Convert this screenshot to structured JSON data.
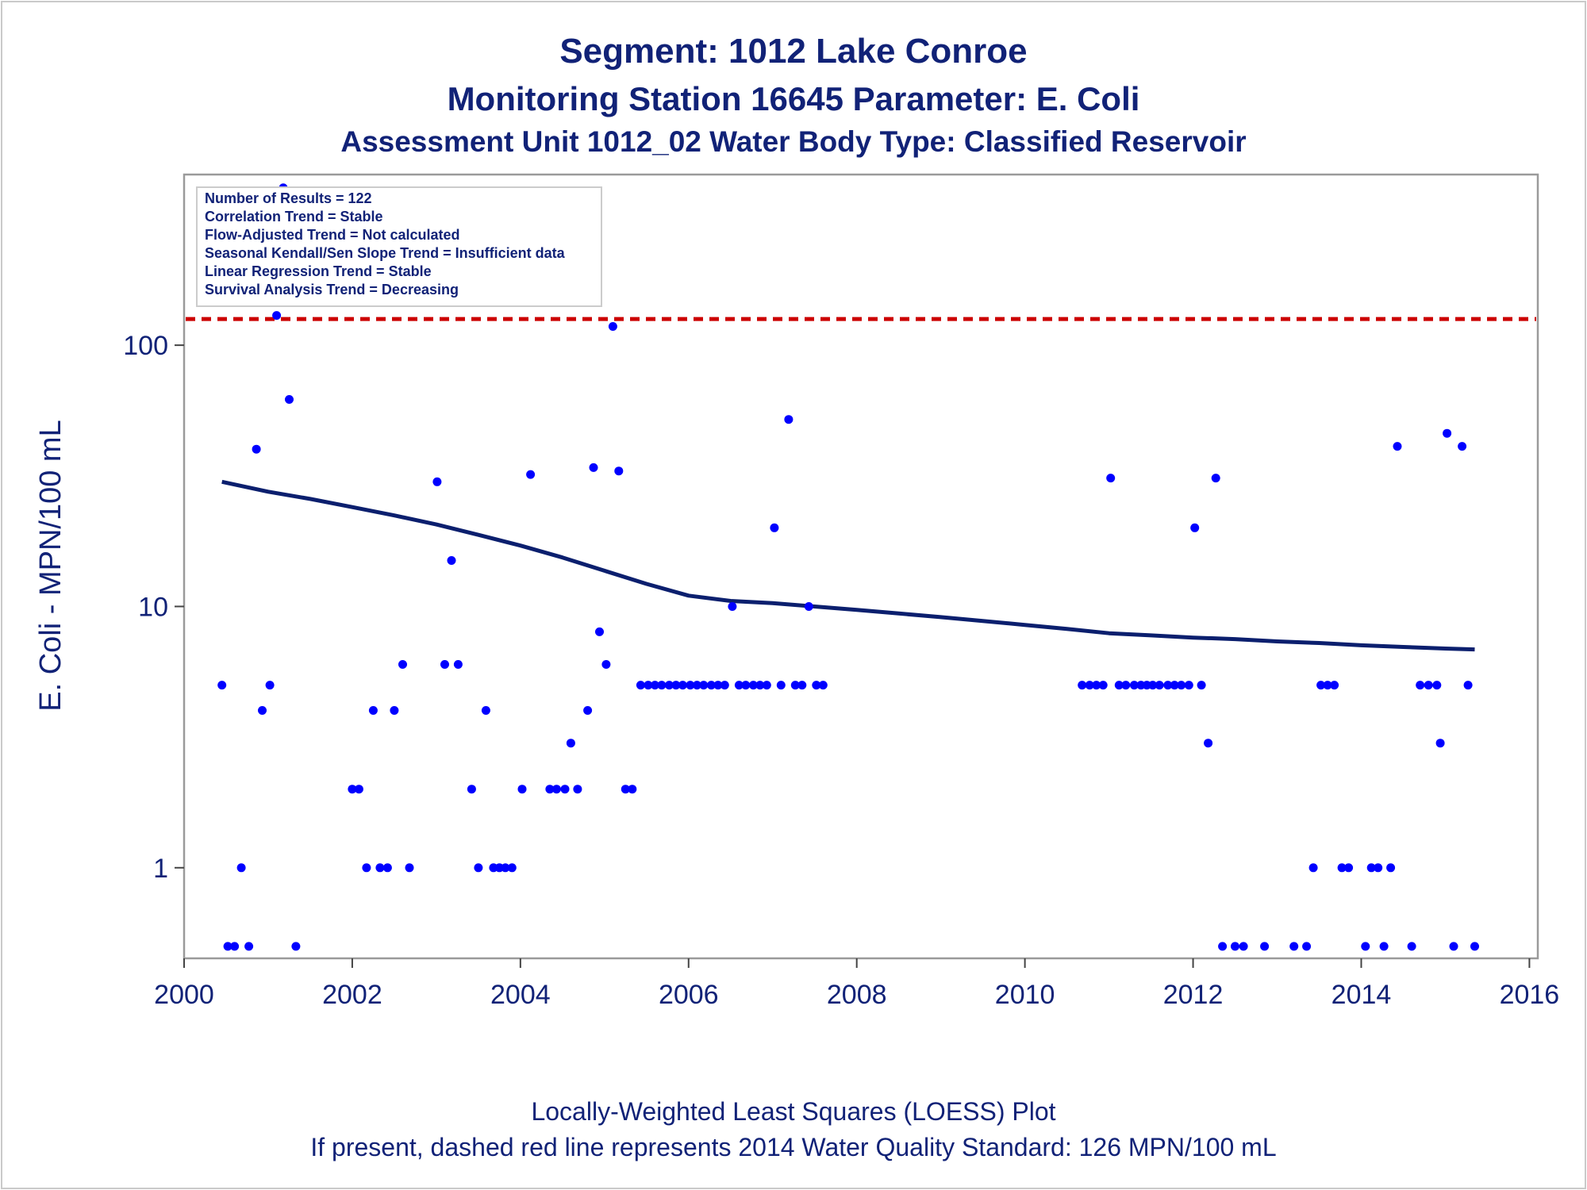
{
  "chart_data": {
    "type": "scatter",
    "title": "Segment: 1012  Lake Conroe",
    "subtitle": "Monitoring Station 16645 Parameter: E. Coli",
    "subtitle2": "Assessment Unit 1012_02   Water Body Type: Classified Reservoir",
    "ylabel": "E. Coli - MPN/100 mL",
    "xlabel": "",
    "y_scale": "log",
    "xlim": [
      2000,
      2016.1
    ],
    "ylim": [
      0.45,
      450
    ],
    "x_ticks": [
      2000,
      2002,
      2004,
      2006,
      2008,
      2010,
      2012,
      2014,
      2016
    ],
    "y_ticks": [
      1,
      10,
      100
    ],
    "x_tick_labels": [
      "2000",
      "2002",
      "2004",
      "2006",
      "2008",
      "2010",
      "2012",
      "2014",
      "2016"
    ],
    "y_tick_labels": [
      "1",
      "10",
      "100"
    ],
    "grid": false,
    "stats_box": [
      "Number of Results = 122",
      "Correlation Trend = Stable",
      "Flow-Adjusted Trend = Not calculated",
      "Seasonal Kendall/Sen Slope Trend = Insufficient data",
      "Linear Regression Trend = Stable",
      "Survival Analysis Trend = Decreasing"
    ],
    "standard_line": {
      "value": 126,
      "color": "#cc0000",
      "style": "dashed"
    },
    "footnotes": [
      "Locally-Weighted Least Squares (LOESS) Plot",
      "If present, dashed red line represents 2014 Water Quality Standard: 126 MPN/100 mL"
    ],
    "series": [
      {
        "kind": "points",
        "color": "#0000ff",
        "points": [
          [
            2000.45,
            5
          ],
          [
            2000.52,
            0.5
          ],
          [
            2000.6,
            0.5
          ],
          [
            2000.68,
            1
          ],
          [
            2000.77,
            0.5
          ],
          [
            2000.86,
            40
          ],
          [
            2000.93,
            4
          ],
          [
            2001.02,
            5
          ],
          [
            2001.1,
            130
          ],
          [
            2001.18,
            400
          ],
          [
            2001.25,
            62
          ],
          [
            2001.33,
            0.5
          ],
          [
            2002.0,
            2
          ],
          [
            2002.08,
            2
          ],
          [
            2002.17,
            1
          ],
          [
            2002.25,
            4
          ],
          [
            2002.33,
            1
          ],
          [
            2002.42,
            1
          ],
          [
            2002.5,
            4
          ],
          [
            2002.6,
            6
          ],
          [
            2002.68,
            1
          ],
          [
            2003.01,
            30
          ],
          [
            2003.1,
            6
          ],
          [
            2003.18,
            15
          ],
          [
            2003.26,
            6
          ],
          [
            2003.42,
            2
          ],
          [
            2003.5,
            1
          ],
          [
            2003.59,
            4
          ],
          [
            2003.68,
            1
          ],
          [
            2003.75,
            1
          ],
          [
            2003.82,
            1
          ],
          [
            2003.9,
            1
          ],
          [
            2004.02,
            2
          ],
          [
            2004.12,
            32
          ],
          [
            2004.35,
            2
          ],
          [
            2004.43,
            2
          ],
          [
            2004.53,
            2
          ],
          [
            2004.6,
            3
          ],
          [
            2004.68,
            2
          ],
          [
            2004.8,
            4
          ],
          [
            2004.87,
            34
          ],
          [
            2004.94,
            8
          ],
          [
            2005.02,
            6
          ],
          [
            2005.1,
            118
          ],
          [
            2005.17,
            33
          ],
          [
            2005.25,
            2
          ],
          [
            2005.33,
            2
          ],
          [
            2005.43,
            5
          ],
          [
            2005.52,
            5
          ],
          [
            2005.6,
            5
          ],
          [
            2005.68,
            5
          ],
          [
            2005.77,
            5
          ],
          [
            2005.85,
            5
          ],
          [
            2005.93,
            5
          ],
          [
            2006.02,
            5
          ],
          [
            2006.1,
            5
          ],
          [
            2006.18,
            5
          ],
          [
            2006.27,
            5
          ],
          [
            2006.35,
            5
          ],
          [
            2006.43,
            5
          ],
          [
            2006.52,
            10
          ],
          [
            2006.6,
            5
          ],
          [
            2006.68,
            5
          ],
          [
            2006.77,
            5
          ],
          [
            2006.85,
            5
          ],
          [
            2006.93,
            5
          ],
          [
            2007.02,
            20
          ],
          [
            2007.1,
            5
          ],
          [
            2007.19,
            52
          ],
          [
            2007.27,
            5
          ],
          [
            2007.35,
            5
          ],
          [
            2007.43,
            10
          ],
          [
            2007.52,
            5
          ],
          [
            2007.6,
            5
          ],
          [
            2010.68,
            5
          ],
          [
            2010.77,
            5
          ],
          [
            2010.85,
            5
          ],
          [
            2010.93,
            5
          ],
          [
            2011.02,
            31
          ],
          [
            2011.12,
            5
          ],
          [
            2011.2,
            5
          ],
          [
            2011.3,
            5
          ],
          [
            2011.38,
            5
          ],
          [
            2011.45,
            5
          ],
          [
            2011.52,
            5
          ],
          [
            2011.6,
            5
          ],
          [
            2011.7,
            5
          ],
          [
            2011.78,
            5
          ],
          [
            2011.86,
            5
          ],
          [
            2011.95,
            5
          ],
          [
            2012.02,
            20
          ],
          [
            2012.1,
            5
          ],
          [
            2012.18,
            3
          ],
          [
            2012.27,
            31
          ],
          [
            2012.35,
            0.5
          ],
          [
            2012.5,
            0.5
          ],
          [
            2012.6,
            0.5
          ],
          [
            2012.85,
            0.5
          ],
          [
            2013.2,
            0.5
          ],
          [
            2013.35,
            0.5
          ],
          [
            2013.43,
            1
          ],
          [
            2013.52,
            5
          ],
          [
            2013.6,
            5
          ],
          [
            2013.68,
            5
          ],
          [
            2013.77,
            1
          ],
          [
            2013.85,
            1
          ],
          [
            2014.05,
            0.5
          ],
          [
            2014.12,
            1
          ],
          [
            2014.2,
            1
          ],
          [
            2014.27,
            0.5
          ],
          [
            2014.35,
            1
          ],
          [
            2014.43,
            41
          ],
          [
            2014.6,
            0.5
          ],
          [
            2014.7,
            5
          ],
          [
            2014.8,
            5
          ],
          [
            2014.9,
            5
          ],
          [
            2014.94,
            3
          ],
          [
            2015.02,
            46
          ],
          [
            2015.1,
            0.5
          ],
          [
            2015.2,
            41
          ],
          [
            2015.27,
            5
          ],
          [
            2015.35,
            0.5
          ]
        ]
      },
      {
        "kind": "line",
        "color": "#0b1f6e",
        "points": [
          [
            2000.45,
            30
          ],
          [
            2001.0,
            27.5
          ],
          [
            2001.5,
            25.8
          ],
          [
            2002.0,
            24
          ],
          [
            2002.5,
            22.3
          ],
          [
            2003.0,
            20.6
          ],
          [
            2003.5,
            18.8
          ],
          [
            2004.0,
            17.1
          ],
          [
            2004.5,
            15.4
          ],
          [
            2005.0,
            13.7
          ],
          [
            2005.5,
            12.2
          ],
          [
            2006.0,
            11.0
          ],
          [
            2006.5,
            10.5
          ],
          [
            2007.0,
            10.3
          ],
          [
            2007.5,
            10.0
          ],
          [
            2008.0,
            9.7
          ],
          [
            2008.5,
            9.4
          ],
          [
            2009.0,
            9.1
          ],
          [
            2009.5,
            8.8
          ],
          [
            2010.0,
            8.5
          ],
          [
            2010.5,
            8.2
          ],
          [
            2011.0,
            7.9
          ],
          [
            2011.5,
            7.75
          ],
          [
            2012.0,
            7.6
          ],
          [
            2012.5,
            7.5
          ],
          [
            2013.0,
            7.35
          ],
          [
            2013.5,
            7.25
          ],
          [
            2014.0,
            7.1
          ],
          [
            2014.5,
            7.0
          ],
          [
            2015.0,
            6.9
          ],
          [
            2015.35,
            6.85
          ]
        ]
      }
    ]
  }
}
